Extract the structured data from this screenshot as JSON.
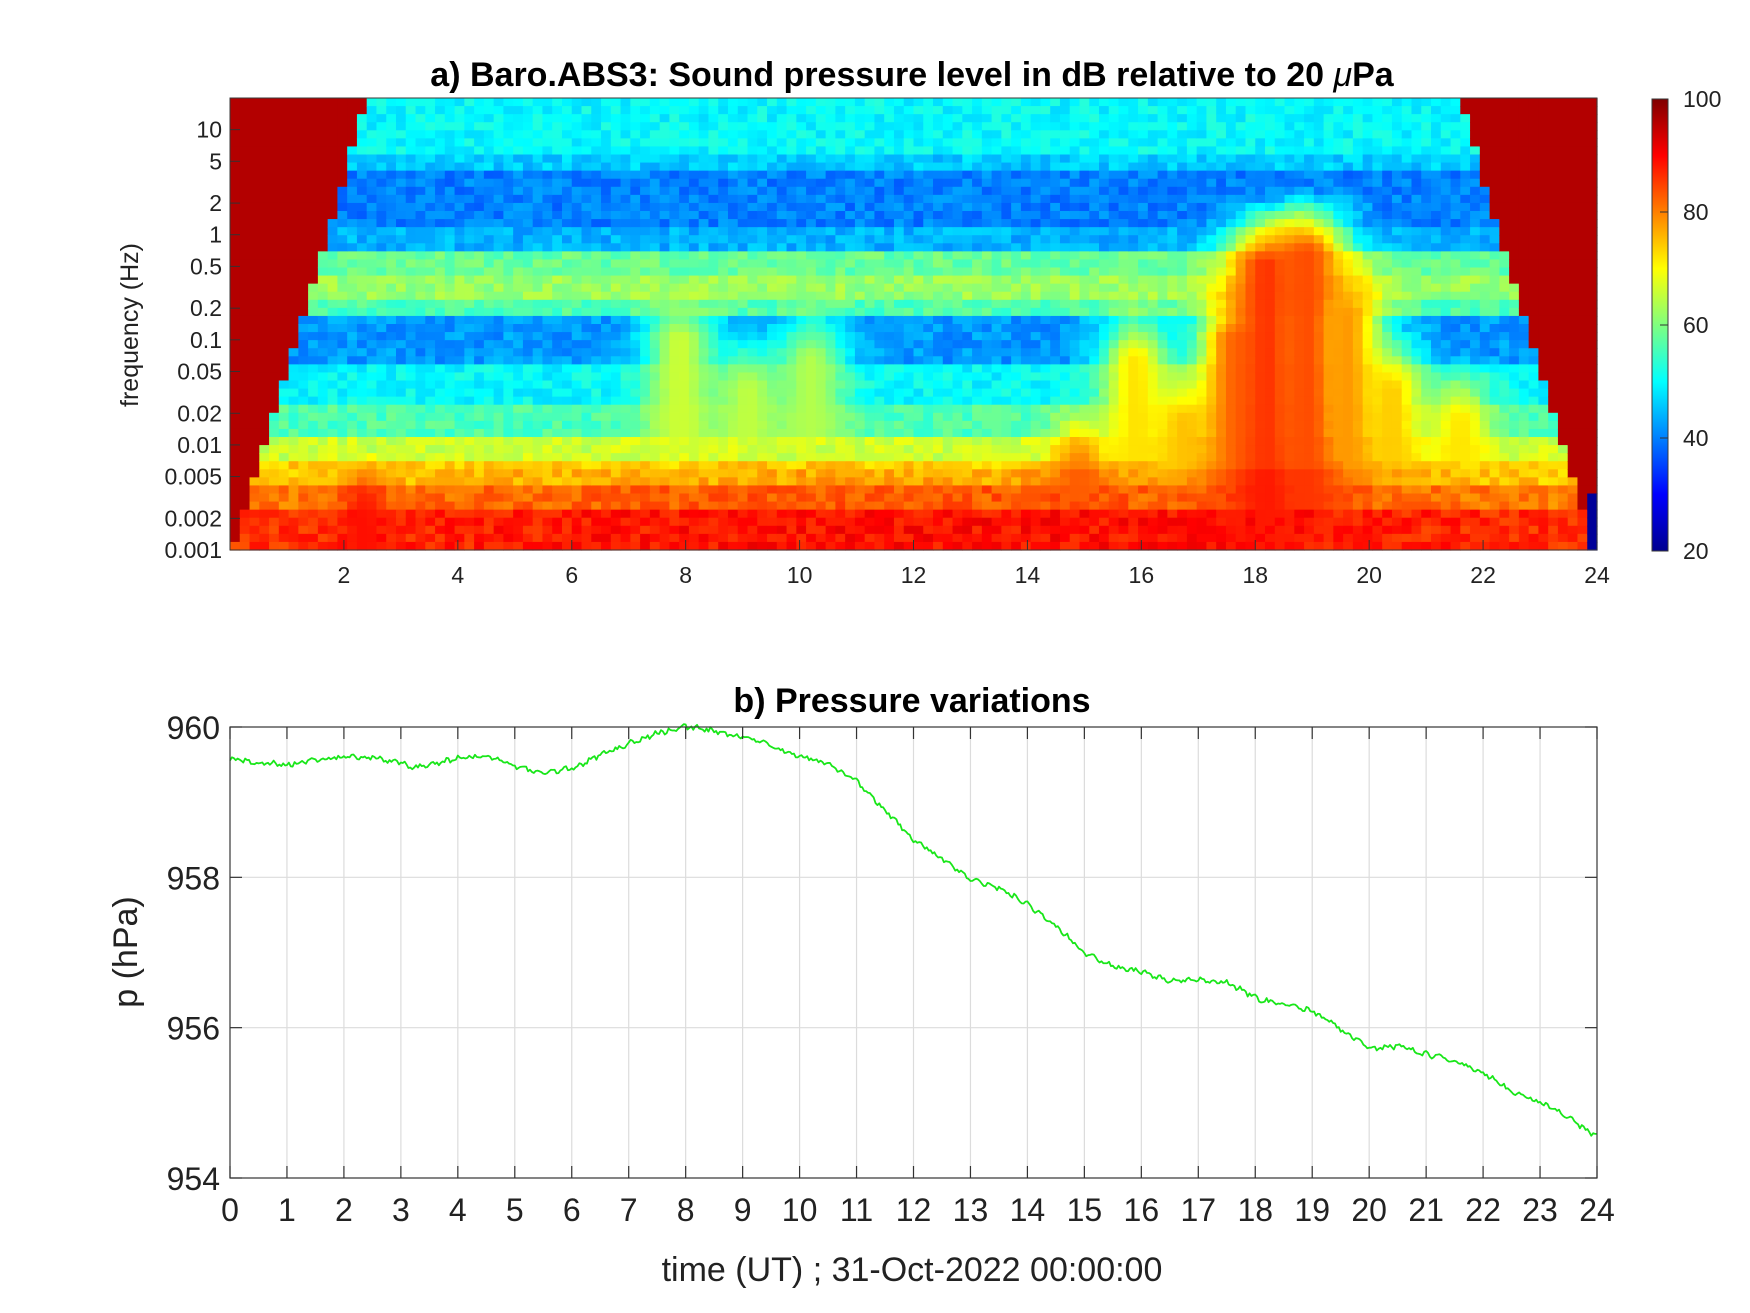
{
  "chart_data": [
    {
      "type": "heatmap",
      "title_prefix": "a) Baro.ABS3: Sound pressure level in dB relative to 20 ",
      "title_mu": "μ",
      "title_suffix": "Pa",
      "ylabel": "frequency (Hz)",
      "yscale": "log",
      "xlim": [
        0,
        24
      ],
      "ylim": [
        0.001,
        20
      ],
      "xticks": [
        2,
        4,
        6,
        8,
        10,
        12,
        14,
        16,
        18,
        20,
        22,
        24
      ],
      "xtick_labels": [
        "2",
        "4",
        "6",
        "8",
        "10",
        "12",
        "14",
        "16",
        "18",
        "20",
        "22",
        "24"
      ],
      "yticks": [
        0.001,
        0.002,
        0.005,
        0.01,
        0.02,
        0.05,
        0.1,
        0.2,
        0.5,
        1,
        2,
        5,
        10
      ],
      "ytick_labels": [
        "0.001",
        "0.002",
        "0.005",
        "0.01",
        "0.02",
        "0.05",
        "0.1",
        "0.2",
        "0.5",
        "1",
        "2",
        "5",
        "10"
      ],
      "colormap": "jet",
      "colorbar": {
        "range": [
          20,
          100
        ],
        "ticks": [
          20,
          40,
          60,
          80,
          100
        ],
        "tick_labels": [
          "20",
          "40",
          "60",
          "80",
          "100"
        ]
      },
      "events": [
        {
          "t": 2.35,
          "f_top": 0.006,
          "level": 88
        },
        {
          "t": 7.9,
          "f_top": 0.3,
          "level": 66
        },
        {
          "t": 9.1,
          "f_top": 0.1,
          "level": 65
        },
        {
          "t": 10.2,
          "f_top": 0.2,
          "level": 64
        },
        {
          "t": 14.9,
          "f_top": 0.02,
          "level": 80
        },
        {
          "t": 15.9,
          "f_top": 0.2,
          "level": 72
        },
        {
          "t": 16.7,
          "f_top": 0.05,
          "level": 74
        },
        {
          "t": 17.6,
          "f_top": 0.3,
          "level": 78
        },
        {
          "t": 18.2,
          "f_top": 1.5,
          "level": 86
        },
        {
          "t": 18.9,
          "f_top": 2.0,
          "level": 84
        },
        {
          "t": 19.6,
          "f_top": 0.5,
          "level": 78
        },
        {
          "t": 20.4,
          "f_top": 0.1,
          "level": 74
        },
        {
          "t": 21.6,
          "f_top": 0.05,
          "level": 72
        }
      ]
    },
    {
      "type": "line",
      "title": "b) Pressure variations",
      "xlabel": "time (UT) ; 31-Oct-2022 00:00:00",
      "ylabel": "p (hPa)",
      "xlim": [
        0,
        24
      ],
      "ylim": [
        954,
        960
      ],
      "xticks": [
        0,
        1,
        2,
        3,
        4,
        5,
        6,
        7,
        8,
        9,
        10,
        11,
        12,
        13,
        14,
        15,
        16,
        17,
        18,
        19,
        20,
        21,
        22,
        23,
        24
      ],
      "xtick_labels": [
        "0",
        "1",
        "2",
        "3",
        "4",
        "5",
        "6",
        "7",
        "8",
        "9",
        "10",
        "11",
        "12",
        "13",
        "14",
        "15",
        "16",
        "17",
        "18",
        "19",
        "20",
        "21",
        "22",
        "23",
        "24"
      ],
      "yticks": [
        954,
        956,
        958,
        960
      ],
      "ytick_labels": [
        "954",
        "956",
        "958",
        "960"
      ],
      "grid": true,
      "line_color": "#19e619",
      "x": [
        0,
        0.5,
        1,
        1.5,
        2,
        2.5,
        3,
        3.2,
        3.5,
        4,
        4.5,
        5,
        5.5,
        6,
        6.5,
        7,
        7.5,
        8,
        8.3,
        8.7,
        9,
        9.5,
        10,
        10.5,
        11,
        11.5,
        12,
        12.5,
        13,
        13.5,
        14,
        14.5,
        15,
        15.5,
        16,
        16.5,
        17,
        17.5,
        18,
        18.5,
        19,
        19.5,
        20,
        20.5,
        21,
        21.5,
        22,
        22.5,
        23,
        23.5,
        24
      ],
      "y": [
        959.57,
        959.52,
        959.5,
        959.56,
        959.6,
        959.6,
        959.52,
        959.45,
        959.5,
        959.58,
        959.62,
        959.48,
        959.38,
        959.45,
        959.62,
        959.78,
        959.92,
        960.0,
        959.98,
        959.9,
        959.87,
        959.75,
        959.62,
        959.5,
        959.28,
        958.9,
        958.5,
        958.25,
        957.97,
        957.85,
        957.65,
        957.35,
        957.0,
        956.82,
        956.75,
        956.62,
        956.65,
        956.6,
        956.4,
        956.3,
        956.22,
        955.98,
        955.72,
        955.75,
        955.65,
        955.55,
        955.4,
        955.15,
        955.0,
        954.8,
        954.55
      ]
    }
  ]
}
